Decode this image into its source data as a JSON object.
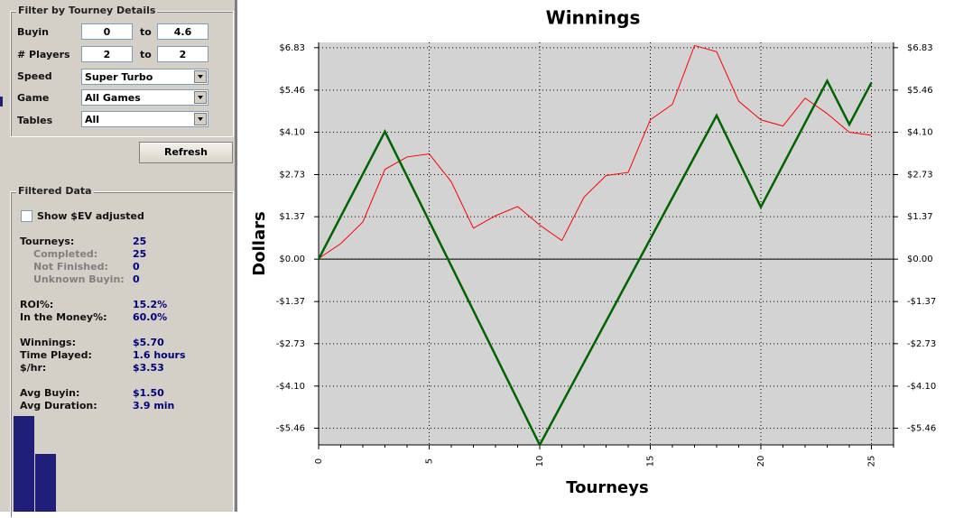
{
  "filter": {
    "title": "Filter by Tourney Details",
    "buyin": {
      "label": "Buyin",
      "from": "0",
      "to_label": "to",
      "to": "4.6"
    },
    "players": {
      "label": "# Players",
      "from": "2",
      "to_label": "to",
      "to": "2"
    },
    "speed": {
      "label": "Speed",
      "value": "Super Turbo"
    },
    "game": {
      "label": "Game",
      "value": "All Games"
    },
    "tables": {
      "label": "Tables",
      "value": "All"
    },
    "button": "Refresh"
  },
  "filtered_data": {
    "title": "Filtered Data",
    "checkbox": "Show $EV adjusted",
    "stats": [
      [
        "Tourneys:",
        "25"
      ],
      [
        "Completed:",
        "25"
      ],
      [
        "Not Finished:",
        "0"
      ],
      [
        "Unknown Buyin:",
        "0"
      ],
      [
        "ROI%:",
        "15.2%"
      ],
      [
        "In the Money%:",
        "60.0%"
      ],
      [
        "Winnings:",
        "$5.70"
      ],
      [
        "Time Played:",
        "1.6 hours"
      ],
      [
        "$/hr:",
        "$3.53"
      ],
      [
        "Avg Buyin:",
        "$1.50"
      ],
      [
        "Avg Duration:",
        "3.9 min"
      ]
    ]
  },
  "chart_data": {
    "type": "line",
    "title": "Winnings",
    "x_label": "Tourneys",
    "y_label": "Dollars",
    "xlim": [
      0,
      26
    ],
    "xticks": [
      0,
      5,
      10,
      15,
      20,
      25
    ],
    "ylim": [
      -6.0,
      7.0
    ],
    "yticks": [
      {
        "value": 6.83,
        "label": "$6.83"
      },
      {
        "value": 5.46,
        "label": "$5.46"
      },
      {
        "value": 4.1,
        "label": "$4.10"
      },
      {
        "value": 2.73,
        "label": "$2.73"
      },
      {
        "value": 1.37,
        "label": "$1.37"
      },
      {
        "value": 0,
        "label": "$0.00"
      },
      {
        "value": -1.37,
        "label": "-$1.37"
      },
      {
        "value": -2.73,
        "label": "-$2.73"
      },
      {
        "value": -4.1,
        "label": "-$4.10"
      },
      {
        "value": -5.46,
        "label": "-$5.46"
      }
    ],
    "grid": true,
    "right_axis": true,
    "series": [
      {
        "color": "#ff0000",
        "width": 1,
        "x": [
          0,
          1,
          2,
          3,
          4,
          5,
          6,
          7,
          8,
          9,
          10,
          11,
          12,
          13,
          14,
          15,
          16,
          17,
          18,
          19,
          20,
          21,
          22,
          23,
          24,
          25
        ],
        "values": [
          0.02,
          0.5,
          1.2,
          2.9,
          3.3,
          3.4,
          2.5,
          1.0,
          1.4,
          1.7,
          1.1,
          0.6,
          2.0,
          2.7,
          2.8,
          4.5,
          5.0,
          6.9,
          6.7,
          5.1,
          4.5,
          4.3,
          5.2,
          4.7,
          4.1,
          4.0
        ]
      },
      {
        "color": "#006400",
        "width": 2.5,
        "x": [
          0,
          3,
          10,
          18,
          20,
          23,
          24,
          25
        ],
        "values": [
          0,
          4.12,
          -6.0,
          4.64,
          1.68,
          5.76,
          4.35,
          5.7
        ]
      }
    ]
  }
}
